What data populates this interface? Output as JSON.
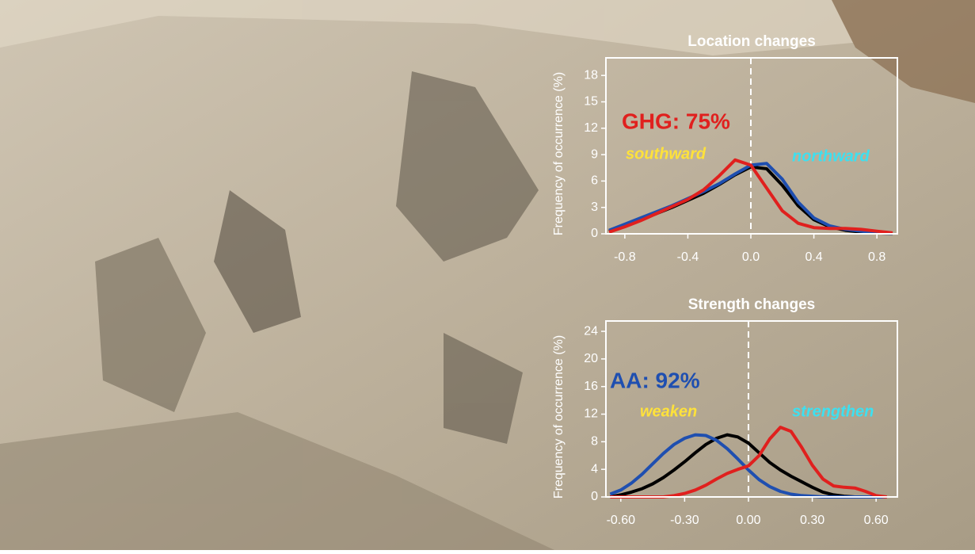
{
  "chart_data": [
    {
      "type": "line",
      "title": "Location changes",
      "y_label": "Frequency of occurrence (%)",
      "x": [
        -0.9,
        -0.8,
        -0.7,
        -0.6,
        -0.5,
        -0.4,
        -0.3,
        -0.2,
        -0.1,
        0,
        0.1,
        0.2,
        0.3,
        0.4,
        0.5,
        0.6,
        0.7,
        0.8,
        0.9
      ],
      "series": [
        {
          "color": "#000000",
          "values": [
            0.3,
            1,
            1.6,
            2.3,
            3.0,
            3.8,
            4.6,
            5.6,
            6.7,
            7.6,
            7.4,
            5.5,
            3.2,
            1.6,
            0.8,
            0.4,
            0.2,
            0.1,
            0.05
          ]
        },
        {
          "color": "#1f4fb0",
          "values": [
            0.4,
            1.1,
            1.8,
            2.5,
            3.2,
            4.0,
            4.8,
            5.7,
            6.8,
            7.8,
            8.0,
            6.2,
            3.6,
            1.8,
            0.9,
            0.5,
            0.3,
            0.1,
            0.05
          ]
        },
        {
          "color": "#e0201e",
          "values": [
            0.2,
            0.8,
            1.5,
            2.3,
            3.1,
            3.9,
            5.0,
            6.6,
            8.4,
            7.8,
            5.2,
            2.6,
            1.2,
            0.7,
            0.6,
            0.6,
            0.5,
            0.3,
            0.1
          ]
        }
      ],
      "annotations": [
        {
          "text": "GHG: 75%",
          "color": "#e0201e"
        },
        {
          "text": "southward",
          "color": "#ffe23a"
        },
        {
          "text": "northward",
          "color": "#3de0f0"
        }
      ],
      "xlim": [
        -0.92,
        0.93
      ],
      "xticks": [
        -0.8,
        -0.4,
        {
          "value": 0,
          "label": "0.0"
        },
        0.4,
        0.8
      ],
      "ylim": [
        0,
        20
      ],
      "yticks": [
        0,
        3,
        6,
        9,
        12,
        15,
        18
      ]
    },
    {
      "type": "line",
      "title": "Strength changes",
      "y_label": "Frequency of occurrence (%)",
      "x": [
        -0.65,
        -0.6,
        -0.55,
        -0.5,
        -0.45,
        -0.4,
        -0.35,
        -0.3,
        -0.25,
        -0.2,
        -0.15,
        -0.1,
        -0.05,
        0,
        0.05,
        0.1,
        0.15,
        0.2,
        0.25,
        0.3,
        0.35,
        0.4,
        0.45,
        0.5,
        0.55,
        0.6,
        0.65
      ],
      "series": [
        {
          "color": "#000000",
          "values": [
            0,
            0.3,
            0.7,
            1.2,
            1.9,
            2.8,
            3.9,
            5.1,
            6.4,
            7.6,
            8.5,
            9.0,
            8.7,
            7.8,
            6.4,
            5.0,
            3.9,
            3.0,
            2.2,
            1.4,
            0.7,
            0.3,
            0.1,
            0,
            0,
            0,
            0
          ]
        },
        {
          "color": "#1f4fb0",
          "values": [
            0.4,
            1.0,
            2.0,
            3.3,
            4.8,
            6.3,
            7.6,
            8.5,
            9.0,
            8.9,
            8.2,
            7.0,
            5.5,
            3.9,
            2.5,
            1.5,
            0.8,
            0.4,
            0.2,
            0.1,
            0,
            0,
            0,
            0,
            0,
            0,
            0
          ]
        },
        {
          "color": "#e0201e",
          "values": [
            0,
            0,
            0,
            0,
            0,
            0,
            0.2,
            0.5,
            1.0,
            1.7,
            2.6,
            3.4,
            4.0,
            4.5,
            6.0,
            8.4,
            10.1,
            9.5,
            7.2,
            4.6,
            2.6,
            1.6,
            1.4,
            1.3,
            0.8,
            0.2,
            0
          ]
        }
      ],
      "annotations": [
        {
          "text": "AA: 92%",
          "color": "#1f4fb0"
        },
        {
          "text": "weaken",
          "color": "#ffe23a"
        },
        {
          "text": "strengthen",
          "color": "#3de0f0"
        }
      ],
      "xlim": [
        -0.67,
        0.7
      ],
      "xticks": [
        {
          "value": -0.6,
          "label": "-0.60"
        },
        {
          "value": -0.3,
          "label": "-0.30"
        },
        {
          "value": 0,
          "label": "0.00"
        },
        {
          "value": 0.3,
          "label": "0.30"
        },
        {
          "value": 0.6,
          "label": "0.60"
        }
      ],
      "ylim": [
        0,
        25.5
      ],
      "yticks": [
        0,
        4,
        8,
        12,
        16,
        20,
        24
      ]
    }
  ]
}
